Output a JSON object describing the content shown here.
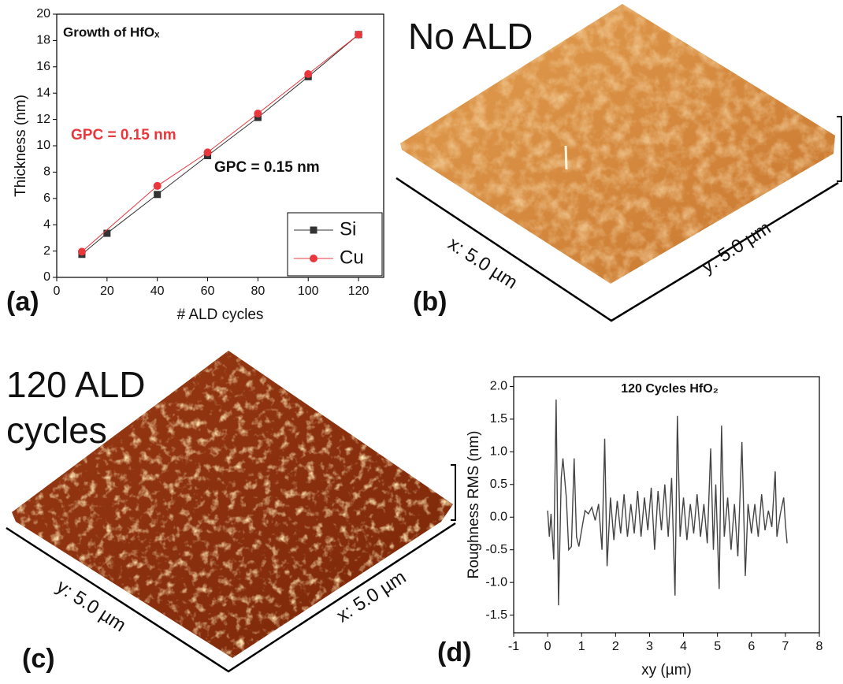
{
  "chart_data": [
    {
      "type": "line",
      "title": "Growth of HfOₓ",
      "x_label": "# ALD cycles",
      "y_label": "Thickness (nm)",
      "xlim": [
        0,
        130
      ],
      "xticks": [
        0,
        20,
        40,
        60,
        80,
        100,
        120
      ],
      "ylim": [
        0,
        20
      ],
      "yticks": [
        0,
        2,
        4,
        6,
        8,
        10,
        12,
        14,
        16,
        18,
        20
      ],
      "legend": "lower right",
      "series": [
        {
          "name": "Si",
          "color": "#333333",
          "marker": "square",
          "x": [
            10,
            20,
            40,
            60,
            80,
            100,
            120
          ],
          "values": [
            1.75,
            3.35,
            6.3,
            9.25,
            12.15,
            15.25,
            18.45
          ]
        },
        {
          "name": "Cu",
          "color": "#e8383d",
          "marker": "circle",
          "x": [
            10,
            40,
            60,
            80,
            100,
            120
          ],
          "values": [
            1.95,
            6.95,
            9.5,
            12.45,
            15.45,
            18.45
          ]
        }
      ],
      "annotations": [
        "GPC = 0.15 nm",
        "GPC = 0.15 nm",
        "(a)"
      ]
    },
    {
      "type": "line",
      "title": "120 Cycles HfO₂",
      "x_label": "xy (µm)",
      "y_label": "Roughness RMS (nm)",
      "xlim": [
        -1,
        8
      ],
      "xticks": [
        -1,
        0,
        1,
        2,
        3,
        4,
        5,
        6,
        7,
        8
      ],
      "ylim": [
        -1.77,
        2.15
      ],
      "yticks": [
        {
          "value": -1.5,
          "label": "-1.5"
        },
        {
          "value": -1,
          "label": "-1.0"
        },
        {
          "value": -0.5,
          "label": "-0.5"
        },
        {
          "value": 0,
          "label": "0.0"
        },
        {
          "value": 0.5,
          "label": "0.5"
        },
        {
          "value": 1,
          "label": "1.0"
        },
        {
          "value": 1.5,
          "label": "1.5"
        },
        {
          "value": 2,
          "label": "2.0"
        }
      ],
      "series": [
        {
          "color": "#444444",
          "x": [
            0,
            0.05,
            0.1,
            0.18,
            0.25,
            0.32,
            0.4,
            0.45,
            0.55,
            0.62,
            0.7,
            0.78,
            0.85,
            0.92,
            1.0,
            1.1,
            1.2,
            1.3,
            1.4,
            1.5,
            1.6,
            1.68,
            1.75,
            1.85,
            1.95,
            2.05,
            2.15,
            2.25,
            2.35,
            2.45,
            2.55,
            2.65,
            2.75,
            2.85,
            2.95,
            3.05,
            3.15,
            3.25,
            3.35,
            3.45,
            3.55,
            3.65,
            3.75,
            3.82,
            3.9,
            4.0,
            4.1,
            4.2,
            4.3,
            4.4,
            4.5,
            4.6,
            4.7,
            4.8,
            4.88,
            4.95,
            5.05,
            5.12,
            5.2,
            5.3,
            5.4,
            5.5,
            5.6,
            5.72,
            5.82,
            5.9,
            6.0,
            6.1,
            6.2,
            6.3,
            6.4,
            6.5,
            6.6,
            6.7,
            6.75,
            6.85,
            6.95,
            7.0,
            7.05
          ],
          "values": [
            0.1,
            -0.3,
            0.05,
            -0.65,
            1.8,
            -1.35,
            0.6,
            0.9,
            0.3,
            -0.5,
            -0.45,
            0.9,
            -0.3,
            -0.45,
            -0.2,
            0.1,
            0.05,
            0.15,
            -0.05,
            0.2,
            -0.5,
            1.2,
            -0.75,
            0.3,
            -0.35,
            0.25,
            -0.25,
            0.35,
            -0.3,
            0.2,
            -0.25,
            0.4,
            -0.3,
            0.3,
            -0.2,
            0.45,
            -0.5,
            0.4,
            -0.2,
            0.5,
            -0.3,
            0.6,
            -1.2,
            1.55,
            -0.3,
            0.3,
            -0.35,
            0.2,
            -0.25,
            0.35,
            -0.3,
            0.2,
            -0.4,
            1.05,
            -0.5,
            0.5,
            -1.1,
            1.4,
            -0.3,
            0.3,
            -0.5,
            0.2,
            -0.6,
            1.15,
            -0.9,
            0.2,
            -0.25,
            0.2,
            -0.3,
            0.35,
            -0.2,
            0.1,
            -0.15,
            0.7,
            -0.3,
            0.05,
            0.3,
            -0.1,
            -0.4
          ]
        }
      ],
      "annotations": [
        "(d)"
      ]
    }
  ],
  "afm_panels": [
    {
      "title_lines": [
        "No ALD"
      ],
      "left_axis_label": "x: 5.0 µm",
      "right_axis_label": "y: 5.0 µm",
      "label": "(b)"
    },
    {
      "title_lines": [
        "120 ALD",
        "cycles"
      ],
      "left_axis_label": "y: 5.0 µm",
      "right_axis_label": "x: 5.0 µm",
      "label": "(c)"
    }
  ]
}
